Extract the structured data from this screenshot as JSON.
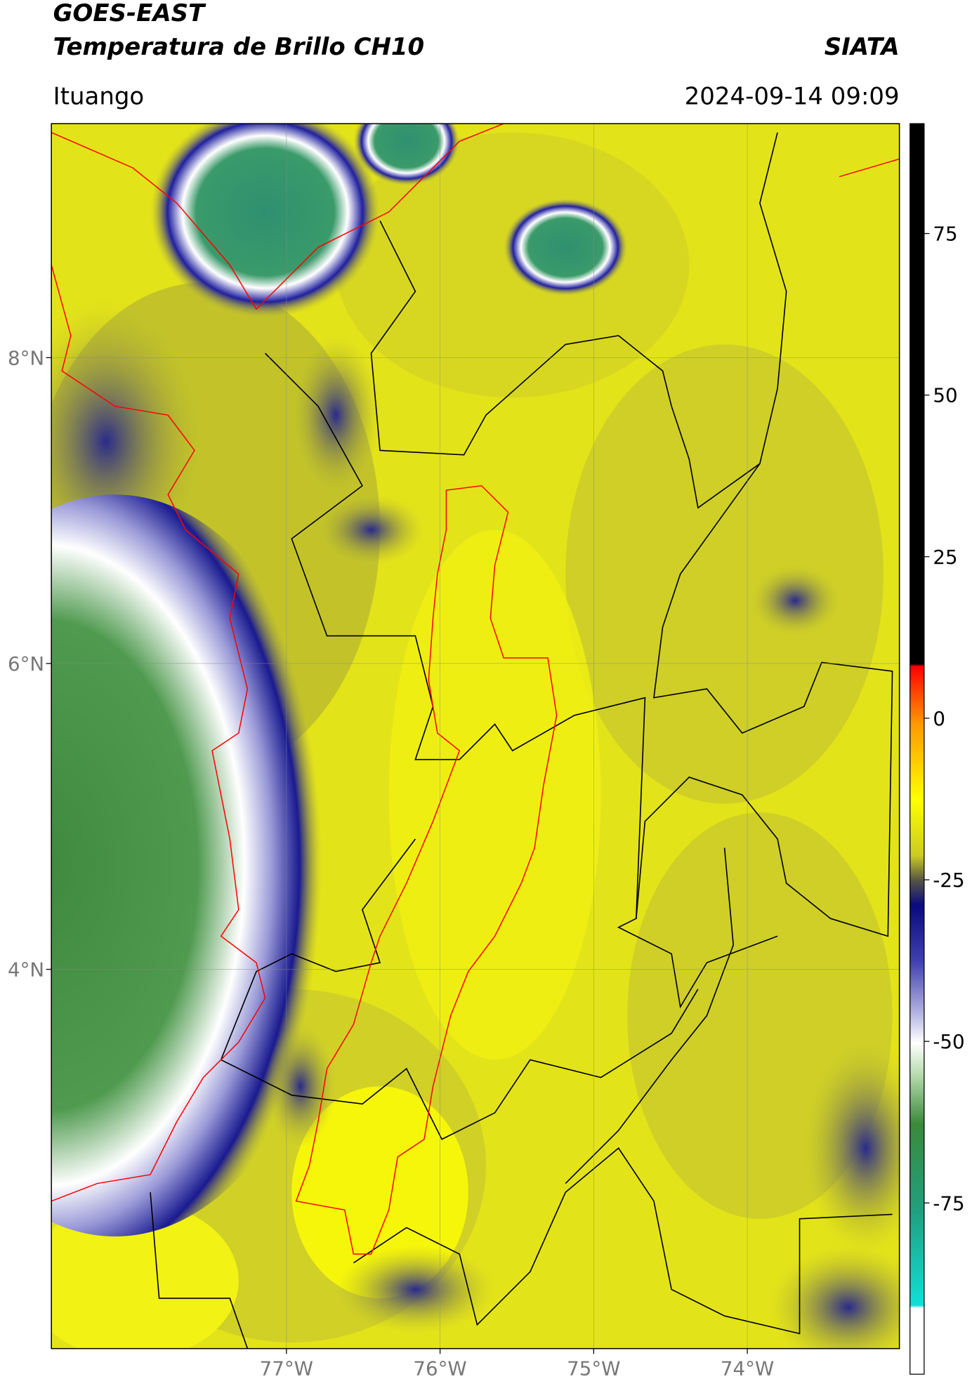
{
  "header": {
    "title": "GOES-EAST",
    "subtitle": "Temperatura de Brillo CH10",
    "source": "SIATA",
    "location": "Ituango",
    "datetime": "2024-09-14 09:09"
  },
  "map": {
    "xlim": [
      -78.53,
      -73.01
    ],
    "ylim": [
      1.52,
      9.53
    ],
    "xticks": [
      {
        "value": -77,
        "label": "77°W"
      },
      {
        "value": -76,
        "label": "76°W"
      },
      {
        "value": -75,
        "label": "75°W"
      },
      {
        "value": -74,
        "label": "74°W"
      }
    ],
    "yticks": [
      {
        "value": 8,
        "label": "8°N"
      },
      {
        "value": 6,
        "label": "6°N"
      },
      {
        "value": 4,
        "label": "4°N"
      }
    ],
    "grid": true
  },
  "colorbar": {
    "clim": [
      -101.5,
      92
    ],
    "ticks": [
      75,
      50,
      25,
      0,
      -25,
      -50,
      -75
    ]
  }
}
